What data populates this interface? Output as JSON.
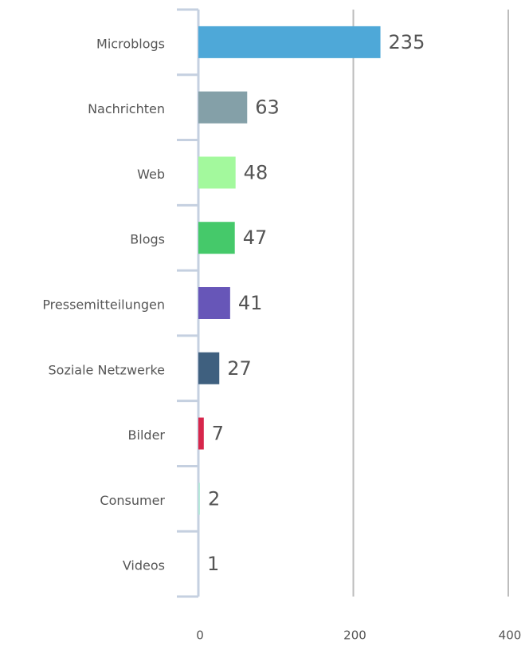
{
  "chart_data": {
    "type": "bar",
    "orientation": "horizontal",
    "categories": [
      "Microblogs",
      "Nachrichten",
      "Web",
      "Blogs",
      "Pressemitteilungen",
      "Soziale Netzwerke",
      "Bilder",
      "Consumer",
      "Videos"
    ],
    "values": [
      235,
      63,
      48,
      47,
      41,
      27,
      7,
      2,
      1
    ],
    "colors": [
      "#4ea8d8",
      "#84a0a8",
      "#a3f99d",
      "#45c96a",
      "#6756b8",
      "#3f607f",
      "#d7264b",
      "#b5e8d8",
      "#c5d0e0"
    ],
    "xlim": [
      0,
      400
    ],
    "xticks": [
      0,
      200,
      400
    ],
    "grid": true
  }
}
